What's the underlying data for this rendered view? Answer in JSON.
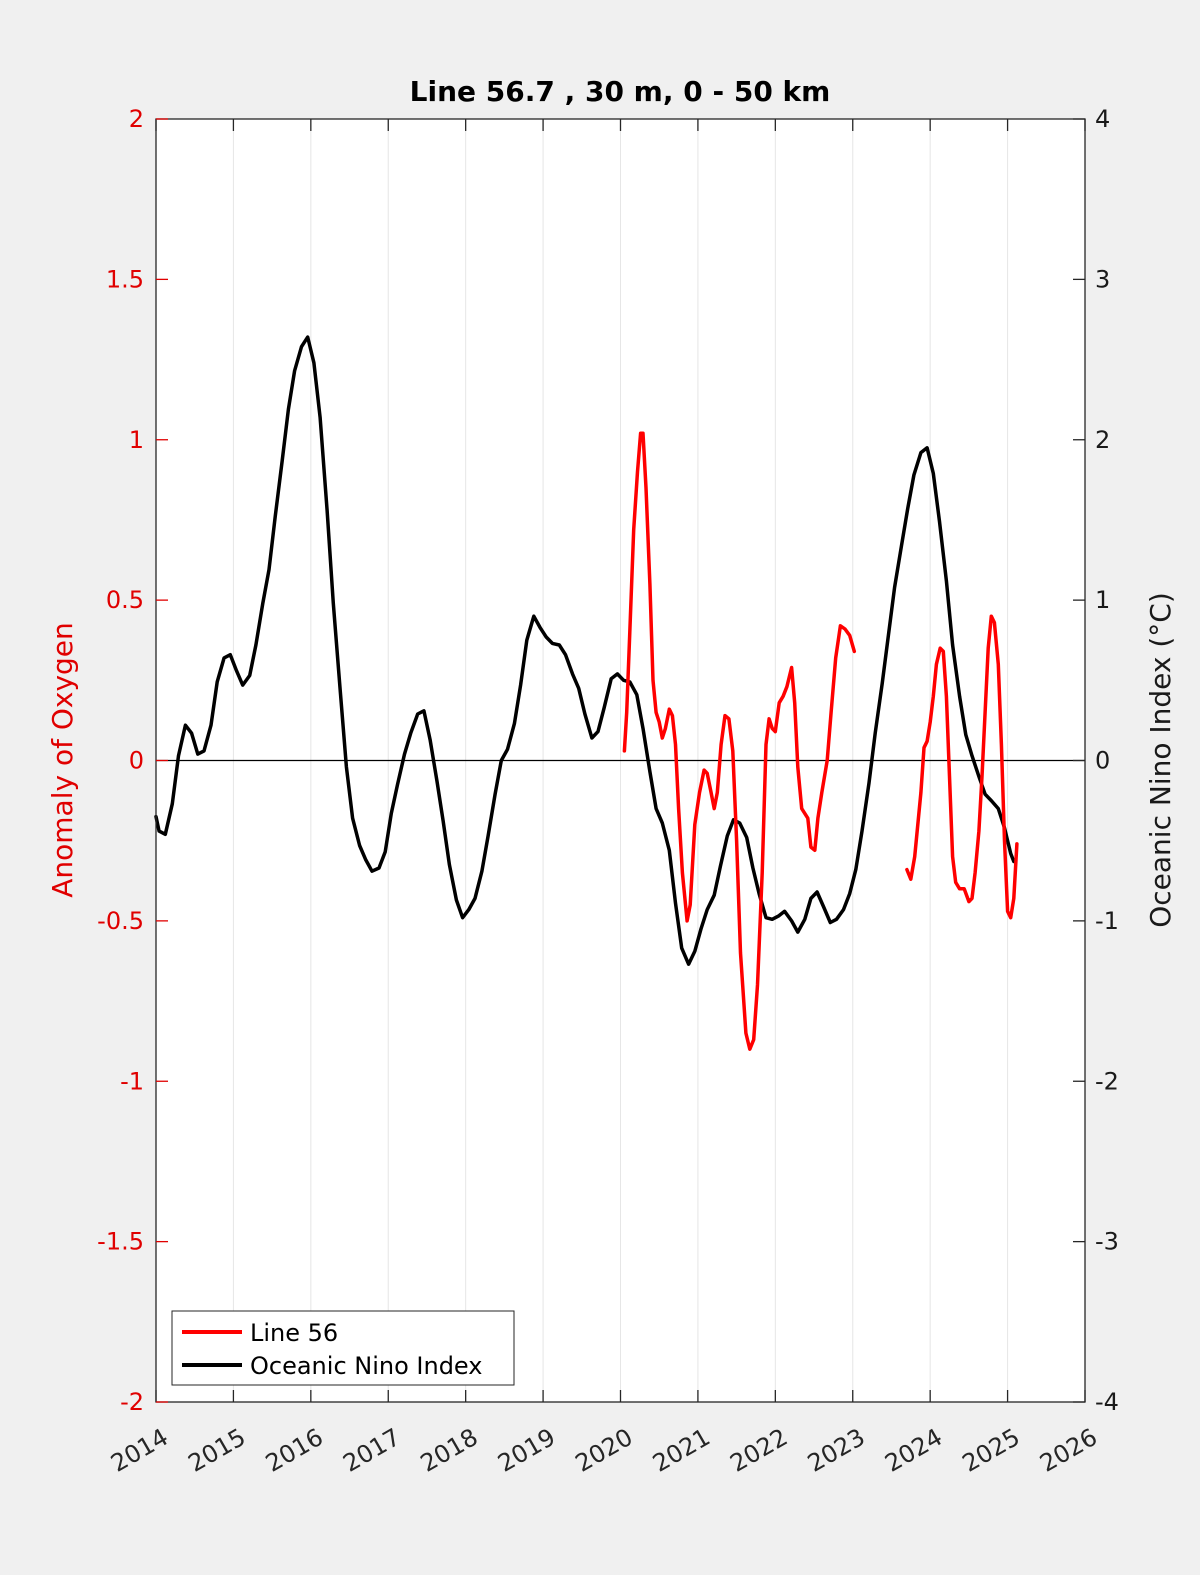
{
  "chart_data": {
    "type": "line",
    "title": "Line 56.7 , 30 m, 0 - 50 km",
    "xlabel": "",
    "ylabel_left": "Anomaly of Oxygen",
    "ylabel_right": "Oceanic Nino Index (°C)",
    "xlim": [
      2014,
      2026
    ],
    "ylim_left": [
      -2,
      2
    ],
    "ylim_right": [
      -4,
      4
    ],
    "x_ticks": [
      "2014",
      "2015",
      "2016",
      "2017",
      "2018",
      "2019",
      "2020",
      "2021",
      "2022",
      "2023",
      "2024",
      "2025",
      "2026"
    ],
    "y_ticks_left": [
      "2",
      "1.5",
      "1",
      "0.5",
      "0",
      "-0.5",
      "-1",
      "-1.5",
      "-2"
    ],
    "y_ticks_right": [
      "4",
      "3",
      "2",
      "1",
      "0",
      "-1",
      "-2",
      "-3",
      "-4"
    ],
    "grid": "vertical",
    "legend_position": "bottom-left",
    "colors": {
      "line56": "#ff0000",
      "oni": "#000000",
      "left_axis": "#e00000",
      "background": "#f0f0f0",
      "plot_area": "#ffffff"
    },
    "series": [
      {
        "name": "Line 56",
        "axis": "left",
        "color": "#ff0000",
        "segments": [
          [
            [
              2020.05,
              0.03
            ],
            [
              2020.08,
              0.15
            ],
            [
              2020.12,
              0.4
            ],
            [
              2020.17,
              0.72
            ],
            [
              2020.22,
              0.9
            ],
            [
              2020.26,
              1.02
            ],
            [
              2020.29,
              1.02
            ],
            [
              2020.33,
              0.85
            ],
            [
              2020.38,
              0.55
            ],
            [
              2020.42,
              0.25
            ],
            [
              2020.46,
              0.15
            ],
            [
              2020.5,
              0.12
            ],
            [
              2020.54,
              0.07
            ],
            [
              2020.58,
              0.1
            ],
            [
              2020.63,
              0.16
            ],
            [
              2020.67,
              0.14
            ],
            [
              2020.71,
              0.05
            ],
            [
              2020.75,
              -0.15
            ],
            [
              2020.8,
              -0.35
            ],
            [
              2020.86,
              -0.5
            ],
            [
              2020.9,
              -0.45
            ],
            [
              2020.96,
              -0.2
            ],
            [
              2021.02,
              -0.1
            ],
            [
              2021.08,
              -0.03
            ],
            [
              2021.12,
              -0.04
            ],
            [
              2021.17,
              -0.1
            ],
            [
              2021.21,
              -0.15
            ],
            [
              2021.25,
              -0.1
            ],
            [
              2021.3,
              0.05
            ],
            [
              2021.35,
              0.14
            ],
            [
              2021.4,
              0.13
            ],
            [
              2021.45,
              0.03
            ],
            [
              2021.5,
              -0.25
            ],
            [
              2021.55,
              -0.6
            ],
            [
              2021.62,
              -0.85
            ],
            [
              2021.67,
              -0.9
            ],
            [
              2021.72,
              -0.87
            ],
            [
              2021.77,
              -0.7
            ],
            [
              2021.83,
              -0.35
            ],
            [
              2021.88,
              0.05
            ],
            [
              2021.92,
              0.13
            ],
            [
              2021.96,
              0.1
            ],
            [
              2022.0,
              0.09
            ],
            [
              2022.05,
              0.18
            ],
            [
              2022.1,
              0.2
            ],
            [
              2022.15,
              0.23
            ],
            [
              2022.21,
              0.29
            ],
            [
              2022.25,
              0.18
            ],
            [
              2022.29,
              -0.02
            ],
            [
              2022.34,
              -0.15
            ],
            [
              2022.42,
              -0.18
            ],
            [
              2022.46,
              -0.27
            ],
            [
              2022.51,
              -0.28
            ],
            [
              2022.55,
              -0.18
            ],
            [
              2022.6,
              -0.1
            ],
            [
              2022.67,
              0.0
            ],
            [
              2022.72,
              0.15
            ],
            [
              2022.78,
              0.32
            ],
            [
              2022.84,
              0.42
            ],
            [
              2022.9,
              0.41
            ],
            [
              2022.96,
              0.39
            ],
            [
              2023.02,
              0.34
            ]
          ],
          [
            [
              2023.7,
              -0.34
            ],
            [
              2023.75,
              -0.37
            ],
            [
              2023.8,
              -0.3
            ],
            [
              2023.88,
              -0.1
            ],
            [
              2023.92,
              0.04
            ],
            [
              2023.96,
              0.06
            ],
            [
              2024.0,
              0.12
            ],
            [
              2024.04,
              0.2
            ],
            [
              2024.08,
              0.3
            ],
            [
              2024.13,
              0.35
            ],
            [
              2024.17,
              0.34
            ],
            [
              2024.21,
              0.2
            ],
            [
              2024.25,
              -0.05
            ],
            [
              2024.29,
              -0.3
            ],
            [
              2024.33,
              -0.38
            ],
            [
              2024.38,
              -0.4
            ],
            [
              2024.44,
              -0.4
            ],
            [
              2024.5,
              -0.44
            ],
            [
              2024.54,
              -0.43
            ],
            [
              2024.58,
              -0.35
            ],
            [
              2024.63,
              -0.22
            ],
            [
              2024.67,
              -0.05
            ],
            [
              2024.71,
              0.15
            ],
            [
              2024.75,
              0.35
            ],
            [
              2024.79,
              0.45
            ],
            [
              2024.83,
              0.43
            ],
            [
              2024.88,
              0.3
            ],
            [
              2024.92,
              0.05
            ],
            [
              2024.96,
              -0.25
            ],
            [
              2025.0,
              -0.47
            ],
            [
              2025.04,
              -0.49
            ],
            [
              2025.08,
              -0.43
            ],
            [
              2025.12,
              -0.26
            ]
          ]
        ]
      },
      {
        "name": "Oceanic Nino Index",
        "axis": "right",
        "color": "#000000",
        "points": [
          [
            2014.0,
            -0.35
          ],
          [
            2014.04,
            -0.44
          ],
          [
            2014.12,
            -0.46
          ],
          [
            2014.21,
            -0.27
          ],
          [
            2014.29,
            0.03
          ],
          [
            2014.38,
            0.22
          ],
          [
            2014.46,
            0.17
          ],
          [
            2014.54,
            0.04
          ],
          [
            2014.62,
            0.06
          ],
          [
            2014.71,
            0.22
          ],
          [
            2014.79,
            0.49
          ],
          [
            2014.88,
            0.64
          ],
          [
            2014.96,
            0.66
          ],
          [
            2015.04,
            0.56
          ],
          [
            2015.12,
            0.47
          ],
          [
            2015.21,
            0.53
          ],
          [
            2015.29,
            0.72
          ],
          [
            2015.38,
            0.98
          ],
          [
            2015.46,
            1.19
          ],
          [
            2015.54,
            1.52
          ],
          [
            2015.63,
            1.87
          ],
          [
            2015.71,
            2.19
          ],
          [
            2015.79,
            2.43
          ],
          [
            2015.88,
            2.58
          ],
          [
            2015.96,
            2.64
          ],
          [
            2016.04,
            2.48
          ],
          [
            2016.12,
            2.14
          ],
          [
            2016.21,
            1.56
          ],
          [
            2016.29,
            0.98
          ],
          [
            2016.38,
            0.43
          ],
          [
            2016.46,
            -0.04
          ],
          [
            2016.54,
            -0.36
          ],
          [
            2016.63,
            -0.53
          ],
          [
            2016.71,
            -0.62
          ],
          [
            2016.79,
            -0.69
          ],
          [
            2016.88,
            -0.67
          ],
          [
            2016.96,
            -0.57
          ],
          [
            2017.04,
            -0.33
          ],
          [
            2017.12,
            -0.15
          ],
          [
            2017.21,
            0.04
          ],
          [
            2017.29,
            0.17
          ],
          [
            2017.38,
            0.29
          ],
          [
            2017.46,
            0.31
          ],
          [
            2017.54,
            0.13
          ],
          [
            2017.63,
            -0.13
          ],
          [
            2017.71,
            -0.38
          ],
          [
            2017.79,
            -0.65
          ],
          [
            2017.88,
            -0.87
          ],
          [
            2017.96,
            -0.98
          ],
          [
            2018.04,
            -0.93
          ],
          [
            2018.12,
            -0.86
          ],
          [
            2018.21,
            -0.69
          ],
          [
            2018.29,
            -0.47
          ],
          [
            2018.38,
            -0.21
          ],
          [
            2018.46,
            0.0
          ],
          [
            2018.54,
            0.07
          ],
          [
            2018.63,
            0.23
          ],
          [
            2018.71,
            0.47
          ],
          [
            2018.79,
            0.75
          ],
          [
            2018.88,
            0.9
          ],
          [
            2018.96,
            0.83
          ],
          [
            2019.04,
            0.77
          ],
          [
            2019.12,
            0.73
          ],
          [
            2019.21,
            0.72
          ],
          [
            2019.29,
            0.66
          ],
          [
            2019.38,
            0.54
          ],
          [
            2019.46,
            0.45
          ],
          [
            2019.54,
            0.29
          ],
          [
            2019.63,
            0.14
          ],
          [
            2019.71,
            0.18
          ],
          [
            2019.79,
            0.33
          ],
          [
            2019.88,
            0.51
          ],
          [
            2019.96,
            0.54
          ],
          [
            2020.04,
            0.5
          ],
          [
            2020.12,
            0.49
          ],
          [
            2020.21,
            0.41
          ],
          [
            2020.29,
            0.2
          ],
          [
            2020.38,
            -0.07
          ],
          [
            2020.46,
            -0.3
          ],
          [
            2020.54,
            -0.39
          ],
          [
            2020.63,
            -0.56
          ],
          [
            2020.71,
            -0.89
          ],
          [
            2020.79,
            -1.17
          ],
          [
            2020.88,
            -1.27
          ],
          [
            2020.96,
            -1.19
          ],
          [
            2021.04,
            -1.05
          ],
          [
            2021.12,
            -0.93
          ],
          [
            2021.21,
            -0.84
          ],
          [
            2021.29,
            -0.66
          ],
          [
            2021.38,
            -0.47
          ],
          [
            2021.46,
            -0.37
          ],
          [
            2021.54,
            -0.39
          ],
          [
            2021.63,
            -0.48
          ],
          [
            2021.71,
            -0.67
          ],
          [
            2021.79,
            -0.83
          ],
          [
            2021.88,
            -0.98
          ],
          [
            2021.96,
            -0.99
          ],
          [
            2022.04,
            -0.97
          ],
          [
            2022.12,
            -0.94
          ],
          [
            2022.21,
            -1.0
          ],
          [
            2022.29,
            -1.07
          ],
          [
            2022.38,
            -0.99
          ],
          [
            2022.46,
            -0.86
          ],
          [
            2022.54,
            -0.82
          ],
          [
            2022.63,
            -0.92
          ],
          [
            2022.71,
            -1.01
          ],
          [
            2022.79,
            -0.99
          ],
          [
            2022.88,
            -0.93
          ],
          [
            2022.96,
            -0.83
          ],
          [
            2023.04,
            -0.68
          ],
          [
            2023.12,
            -0.44
          ],
          [
            2023.21,
            -0.14
          ],
          [
            2023.29,
            0.17
          ],
          [
            2023.38,
            0.48
          ],
          [
            2023.46,
            0.78
          ],
          [
            2023.54,
            1.08
          ],
          [
            2023.63,
            1.34
          ],
          [
            2023.71,
            1.57
          ],
          [
            2023.79,
            1.78
          ],
          [
            2023.88,
            1.92
          ],
          [
            2023.96,
            1.95
          ],
          [
            2024.04,
            1.79
          ],
          [
            2024.12,
            1.49
          ],
          [
            2024.21,
            1.12
          ],
          [
            2024.29,
            0.72
          ],
          [
            2024.38,
            0.4
          ],
          [
            2024.46,
            0.16
          ],
          [
            2024.54,
            0.03
          ],
          [
            2024.63,
            -0.1
          ],
          [
            2024.71,
            -0.21
          ],
          [
            2024.79,
            -0.25
          ],
          [
            2024.88,
            -0.3
          ],
          [
            2024.96,
            -0.42
          ],
          [
            2025.04,
            -0.58
          ],
          [
            2025.08,
            -0.63
          ]
        ]
      }
    ]
  }
}
